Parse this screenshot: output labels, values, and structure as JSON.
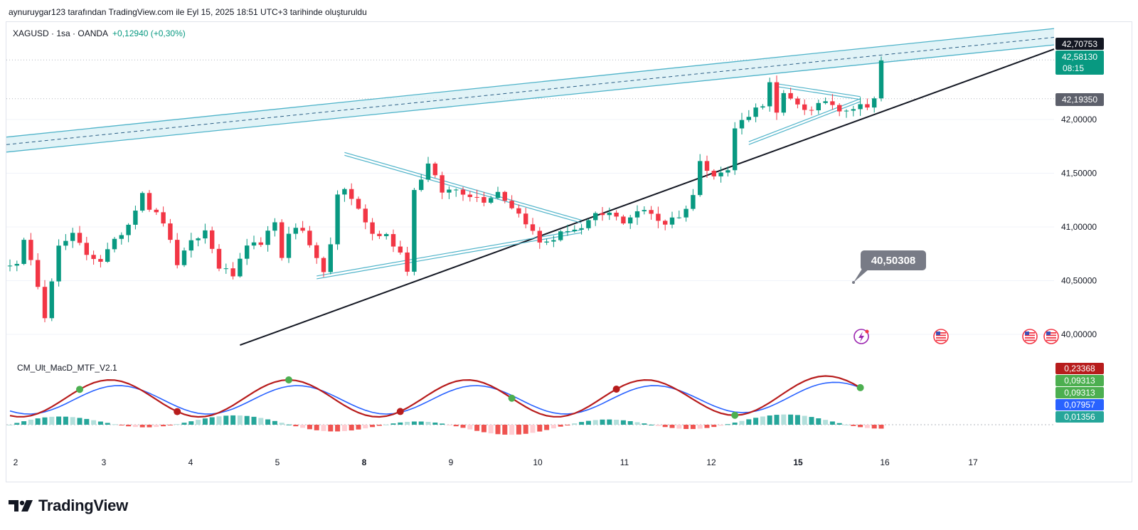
{
  "caption": "aynuruygar123 tarafından TradingView.com ile Eyl 15, 2025 18:51 UTC+3 tarihinde oluşturuldu",
  "legend": {
    "symbol": "XAGUSD · 1sa · OANDA",
    "change": "+0,12940 (+0,30%)"
  },
  "indicator_title": "CM_Ult_MacD_MTF_V2.1",
  "brand": "TradingView",
  "colors": {
    "up": "#089981",
    "down": "#f23645",
    "channel": "#4fb3c9",
    "channel_fill": "#d4eef4",
    "trend": "#131722",
    "macd_green": "#4caf50",
    "macd_red": "#b71c1c",
    "signal_blue": "#2962ff"
  },
  "chart_data": {
    "type": "candlestick",
    "symbol": "XAGUSD",
    "timeframe": "1sa",
    "x_ticks": [
      "2",
      "3",
      "4",
      "5",
      "8",
      "9",
      "10",
      "11",
      "12",
      "15",
      "16",
      "17"
    ],
    "x_ticks_bold": [
      "8",
      "15"
    ],
    "y_ticks": [
      "42,00000",
      "41,50000",
      "41,00000",
      "40,50000",
      "40,00000"
    ],
    "y_tick_values": [
      42.0,
      41.5,
      41.0,
      40.5,
      40.0
    ],
    "price_labels": [
      {
        "value": 42.70753,
        "text": "42,70753",
        "style": "dark"
      },
      {
        "value": 42.5813,
        "text": "42,58130",
        "sub": "08:15",
        "style": "green"
      },
      {
        "value": 42.1935,
        "text": "42,19350",
        "style": "gray"
      }
    ],
    "callout": {
      "text": "40,50308",
      "value": 40.50308
    },
    "ylim": [
      39.9,
      42.95
    ],
    "candle_close_anchors": [
      [
        1,
        40.68
      ],
      [
        2,
        40.86
      ],
      [
        4,
        40.47
      ],
      [
        5,
        40.18
      ],
      [
        6,
        40.52
      ],
      [
        7,
        40.81
      ],
      [
        9,
        40.92
      ],
      [
        11,
        40.75
      ],
      [
        13,
        40.69
      ],
      [
        15,
        40.86
      ],
      [
        17,
        41.03
      ],
      [
        19,
        41.33
      ],
      [
        20,
        41.18
      ],
      [
        22,
        41.05
      ],
      [
        24,
        40.66
      ],
      [
        26,
        40.85
      ],
      [
        28,
        40.96
      ],
      [
        30,
        40.63
      ],
      [
        32,
        40.55
      ],
      [
        34,
        40.8
      ],
      [
        36,
        40.86
      ],
      [
        38,
        41.02
      ],
      [
        39,
        40.72
      ],
      [
        40,
        40.96
      ],
      [
        41,
        40.98
      ],
      [
        42,
        40.96
      ],
      [
        44,
        40.73
      ],
      [
        45,
        40.55
      ],
      [
        46,
        40.85
      ],
      [
        47,
        41.3
      ],
      [
        48,
        41.34
      ],
      [
        50,
        41.17
      ],
      [
        52,
        40.93
      ],
      [
        54,
        40.92
      ],
      [
        56,
        40.76
      ],
      [
        57,
        40.61
      ],
      [
        58,
        41.34
      ],
      [
        60,
        41.58
      ],
      [
        62,
        41.33
      ],
      [
        64,
        41.35
      ],
      [
        66,
        41.3
      ],
      [
        68,
        41.25
      ],
      [
        70,
        41.33
      ],
      [
        72,
        41.19
      ],
      [
        74,
        41.05
      ],
      [
        76,
        40.85
      ],
      [
        78,
        40.89
      ],
      [
        80,
        40.98
      ],
      [
        82,
        40.98
      ],
      [
        84,
        41.1
      ],
      [
        86,
        41.12
      ],
      [
        88,
        41.05
      ],
      [
        90,
        41.15
      ],
      [
        91,
        41.14
      ],
      [
        92,
        41.12
      ],
      [
        93,
        41.07
      ],
      [
        94,
        41.03
      ],
      [
        95,
        41.1
      ],
      [
        96,
        41.08
      ],
      [
        98,
        41.3
      ],
      [
        99,
        41.6
      ],
      [
        101,
        41.5
      ],
      [
        103,
        41.52
      ],
      [
        104,
        41.92
      ],
      [
        106,
        42.05
      ],
      [
        108,
        42.15
      ],
      [
        109,
        42.33
      ],
      [
        110,
        42.05
      ],
      [
        111,
        42.22
      ],
      [
        113,
        42.15
      ],
      [
        115,
        42.07
      ],
      [
        117,
        42.18
      ],
      [
        119,
        42.1
      ],
      [
        121,
        42.11
      ],
      [
        123,
        42.14
      ],
      [
        124,
        42.2
      ],
      [
        125,
        42.55
      ]
    ],
    "channel": {
      "upper": [
        [
          0,
          41.84
        ],
        [
          125,
          42.68
        ]
      ],
      "lower": [
        [
          0,
          41.7
        ],
        [
          125,
          42.53
        ]
      ],
      "mid": [
        [
          0,
          41.77
        ],
        [
          125,
          42.6
        ]
      ]
    },
    "support_line": [
      [
        33,
        39.9
      ],
      [
        125,
        42.07
      ]
    ],
    "triangles": [
      {
        "upper": [
          [
            48,
            41.68
          ],
          [
            82,
            41.05
          ]
        ],
        "lower": [
          [
            44,
            40.53
          ],
          [
            82,
            40.96
          ]
        ]
      },
      {
        "upper": [
          [
            110,
            42.32
          ],
          [
            122,
            42.2
          ]
        ],
        "lower": [
          [
            106,
            41.78
          ],
          [
            122,
            42.18
          ]
        ]
      }
    ],
    "macd": {
      "label_values": [
        {
          "text": "0,23368",
          "color": "#b71c1c"
        },
        {
          "text": "0,09313",
          "color": "#4caf50"
        },
        {
          "text": "0,09313",
          "color": "#4caf50"
        },
        {
          "text": "0,07957",
          "color": "#2962ff"
        },
        {
          "text": "0,01356",
          "color": "#26a69a"
        }
      ]
    }
  }
}
